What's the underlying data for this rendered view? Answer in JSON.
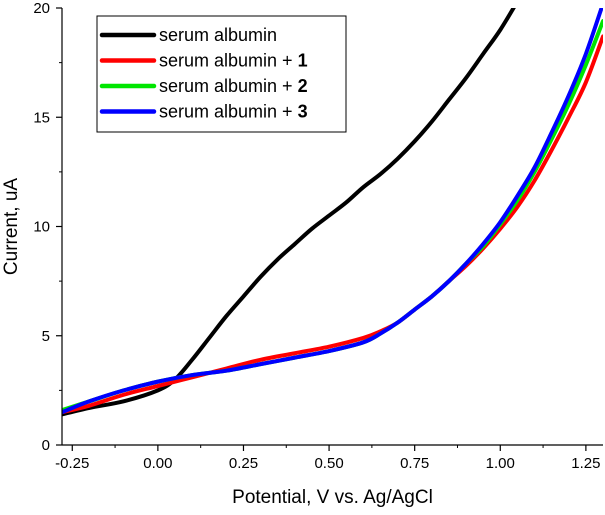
{
  "chart_data": {
    "type": "line",
    "title": "",
    "xlabel": "Potential, V vs. Ag/AgCl",
    "ylabel": "Current, uA",
    "xlim": [
      -0.28,
      1.3
    ],
    "ylim": [
      0,
      20
    ],
    "xticks": [
      -0.25,
      0.0,
      0.25,
      0.5,
      0.75,
      1.0,
      1.25
    ],
    "xtick_labels": [
      "-0.25",
      "0.00",
      "0.25",
      "0.50",
      "0.75",
      "1.00",
      "1.25"
    ],
    "yticks": [
      0,
      5,
      10,
      15,
      20
    ],
    "ytick_labels": [
      "0",
      "5",
      "10",
      "15",
      "20"
    ],
    "grid": false,
    "legend_position": "top-left",
    "series": [
      {
        "name": "serum albumin",
        "legend_base": "serum albumin",
        "legend_suffix": "",
        "color": "#000000",
        "x": [
          -0.28,
          -0.2,
          -0.1,
          0.0,
          0.05,
          0.1,
          0.15,
          0.2,
          0.25,
          0.3,
          0.35,
          0.4,
          0.45,
          0.5,
          0.55,
          0.6,
          0.65,
          0.7,
          0.75,
          0.8,
          0.85,
          0.9,
          0.95,
          1.0,
          1.05
        ],
        "y": [
          1.4,
          1.7,
          2.0,
          2.5,
          3.0,
          3.9,
          4.9,
          5.9,
          6.8,
          7.7,
          8.5,
          9.2,
          9.9,
          10.5,
          11.1,
          11.8,
          12.4,
          13.1,
          13.9,
          14.8,
          15.8,
          16.8,
          17.9,
          19.0,
          20.3
        ]
      },
      {
        "name": "serum albumin + 1",
        "legend_base": "serum albumin + ",
        "legend_suffix": "1",
        "color": "#ff0000",
        "x": [
          -0.28,
          -0.2,
          -0.1,
          0.0,
          0.1,
          0.2,
          0.3,
          0.4,
          0.5,
          0.6,
          0.65,
          0.7,
          0.75,
          0.8,
          0.85,
          0.9,
          0.95,
          1.0,
          1.05,
          1.1,
          1.15,
          1.2,
          1.25,
          1.3
        ],
        "y": [
          1.5,
          1.8,
          2.3,
          2.7,
          3.1,
          3.5,
          3.9,
          4.2,
          4.5,
          4.9,
          5.2,
          5.6,
          6.2,
          6.8,
          7.5,
          8.2,
          9.0,
          9.9,
          10.9,
          12.1,
          13.5,
          15.0,
          16.6,
          18.7
        ]
      },
      {
        "name": "serum albumin + 2",
        "legend_base": "serum albumin + ",
        "legend_suffix": "2",
        "color": "#00e600",
        "x": [
          -0.28,
          -0.2,
          -0.1,
          0.0,
          0.1,
          0.2,
          0.3,
          0.4,
          0.5,
          0.6,
          0.65,
          0.7,
          0.75,
          0.8,
          0.85,
          0.9,
          0.95,
          1.0,
          1.05,
          1.1,
          1.15,
          1.2,
          1.25,
          1.3
        ],
        "y": [
          1.6,
          2.0,
          2.5,
          2.9,
          3.2,
          3.4,
          3.7,
          4.0,
          4.3,
          4.7,
          5.1,
          5.6,
          6.2,
          6.8,
          7.5,
          8.3,
          9.1,
          10.1,
          11.2,
          12.5,
          14.0,
          15.6,
          17.4,
          19.4
        ]
      },
      {
        "name": "serum albumin + 3",
        "legend_base": "serum albumin + ",
        "legend_suffix": "3",
        "color": "#0000ff",
        "x": [
          -0.28,
          -0.2,
          -0.1,
          0.0,
          0.1,
          0.2,
          0.3,
          0.4,
          0.5,
          0.6,
          0.65,
          0.7,
          0.75,
          0.8,
          0.85,
          0.9,
          0.95,
          1.0,
          1.05,
          1.1,
          1.15,
          1.2,
          1.25,
          1.3
        ],
        "y": [
          1.5,
          2.0,
          2.5,
          2.9,
          3.2,
          3.4,
          3.7,
          4.0,
          4.3,
          4.7,
          5.1,
          5.6,
          6.2,
          6.8,
          7.5,
          8.3,
          9.2,
          10.2,
          11.4,
          12.7,
          14.3,
          16.0,
          17.9,
          20.2
        ]
      }
    ]
  }
}
